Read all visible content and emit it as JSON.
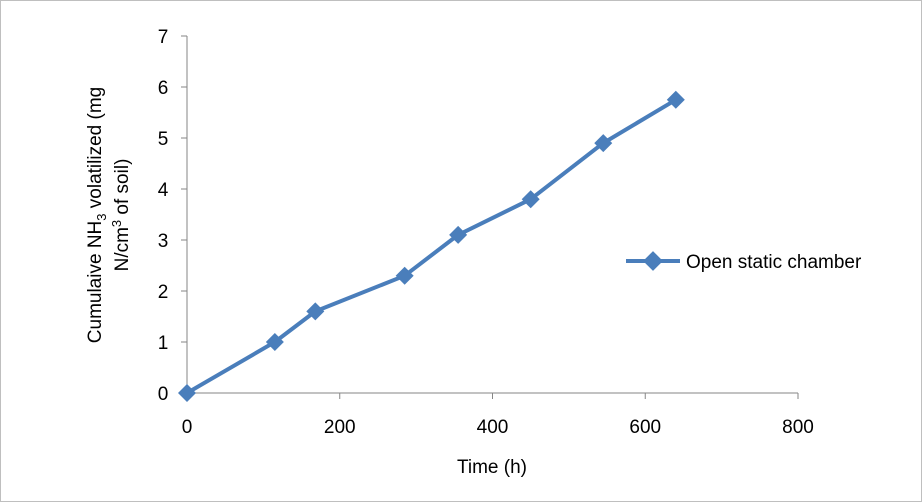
{
  "chart_data": {
    "type": "line",
    "title": "",
    "xlabel": "Time (h)",
    "ylabel_parts": {
      "line1_pre": "Cumulaive NH",
      "line1_sub": "3",
      "line1_post": " volatilized (mg",
      "line2_pre": "N/cm",
      "line2_sup": "3",
      "line2_post": " of soil)"
    },
    "xlim": [
      0,
      800
    ],
    "ylim": [
      0,
      7
    ],
    "x_ticks": [
      "0",
      "200",
      "400",
      "600",
      "800"
    ],
    "y_ticks": [
      "0",
      "1",
      "2",
      "3",
      "4",
      "5",
      "6",
      "7"
    ],
    "grid": false,
    "legend_position": "right",
    "series": [
      {
        "name": "Open static chamber",
        "color": "#4a7ebb",
        "marker": "diamond",
        "x": [
          0,
          115,
          168,
          285,
          355,
          450,
          545,
          640
        ],
        "y": [
          0,
          1.0,
          1.6,
          2.3,
          3.1,
          3.8,
          4.9,
          5.75
        ]
      }
    ]
  }
}
